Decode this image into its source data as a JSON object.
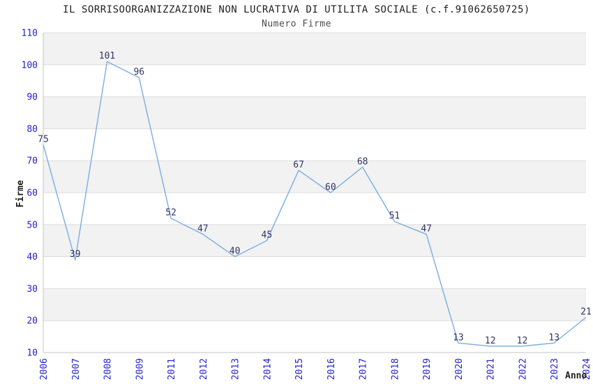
{
  "page": {
    "title": "IL SORRISOORGANIZZAZIONE NON LUCRATIVA DI UTILITA SOCIALE (c.f.91062650725)",
    "subtitle": "Numero Firme"
  },
  "chart_data": {
    "type": "line",
    "title": "IL SORRISOORGANIZZAZIONE NON LUCRATIVA DI UTILITA SOCIALE (c.f.91062650725)",
    "subtitle": "Numero Firme",
    "xlabel": "Anno",
    "ylabel": "Firme",
    "categories": [
      "2006",
      "2007",
      "2008",
      "2009",
      "2011",
      "2012",
      "2013",
      "2014",
      "2015",
      "2016",
      "2017",
      "2018",
      "2019",
      "2020",
      "2021",
      "2022",
      "2023",
      "2024"
    ],
    "values": [
      75,
      39,
      101,
      96,
      52,
      47,
      40,
      45,
      67,
      60,
      68,
      51,
      47,
      13,
      12,
      12,
      13,
      21
    ],
    "ylim": [
      10,
      110
    ],
    "ytick_step": 10,
    "grid": "horizontal-bands",
    "legend_position": "none",
    "data_labels": "above-points",
    "colors": {
      "line": "#79ade2",
      "band_alt": "#f2f2f2",
      "band_main": "#ffffff",
      "gridline": "#dcdcdc",
      "axis_line": "#c6c6c6",
      "tick_label": "#2424cc",
      "data_label": "#333366",
      "title_text": "#1f1f1f",
      "subtitle_text": "#4d4d4d"
    }
  }
}
